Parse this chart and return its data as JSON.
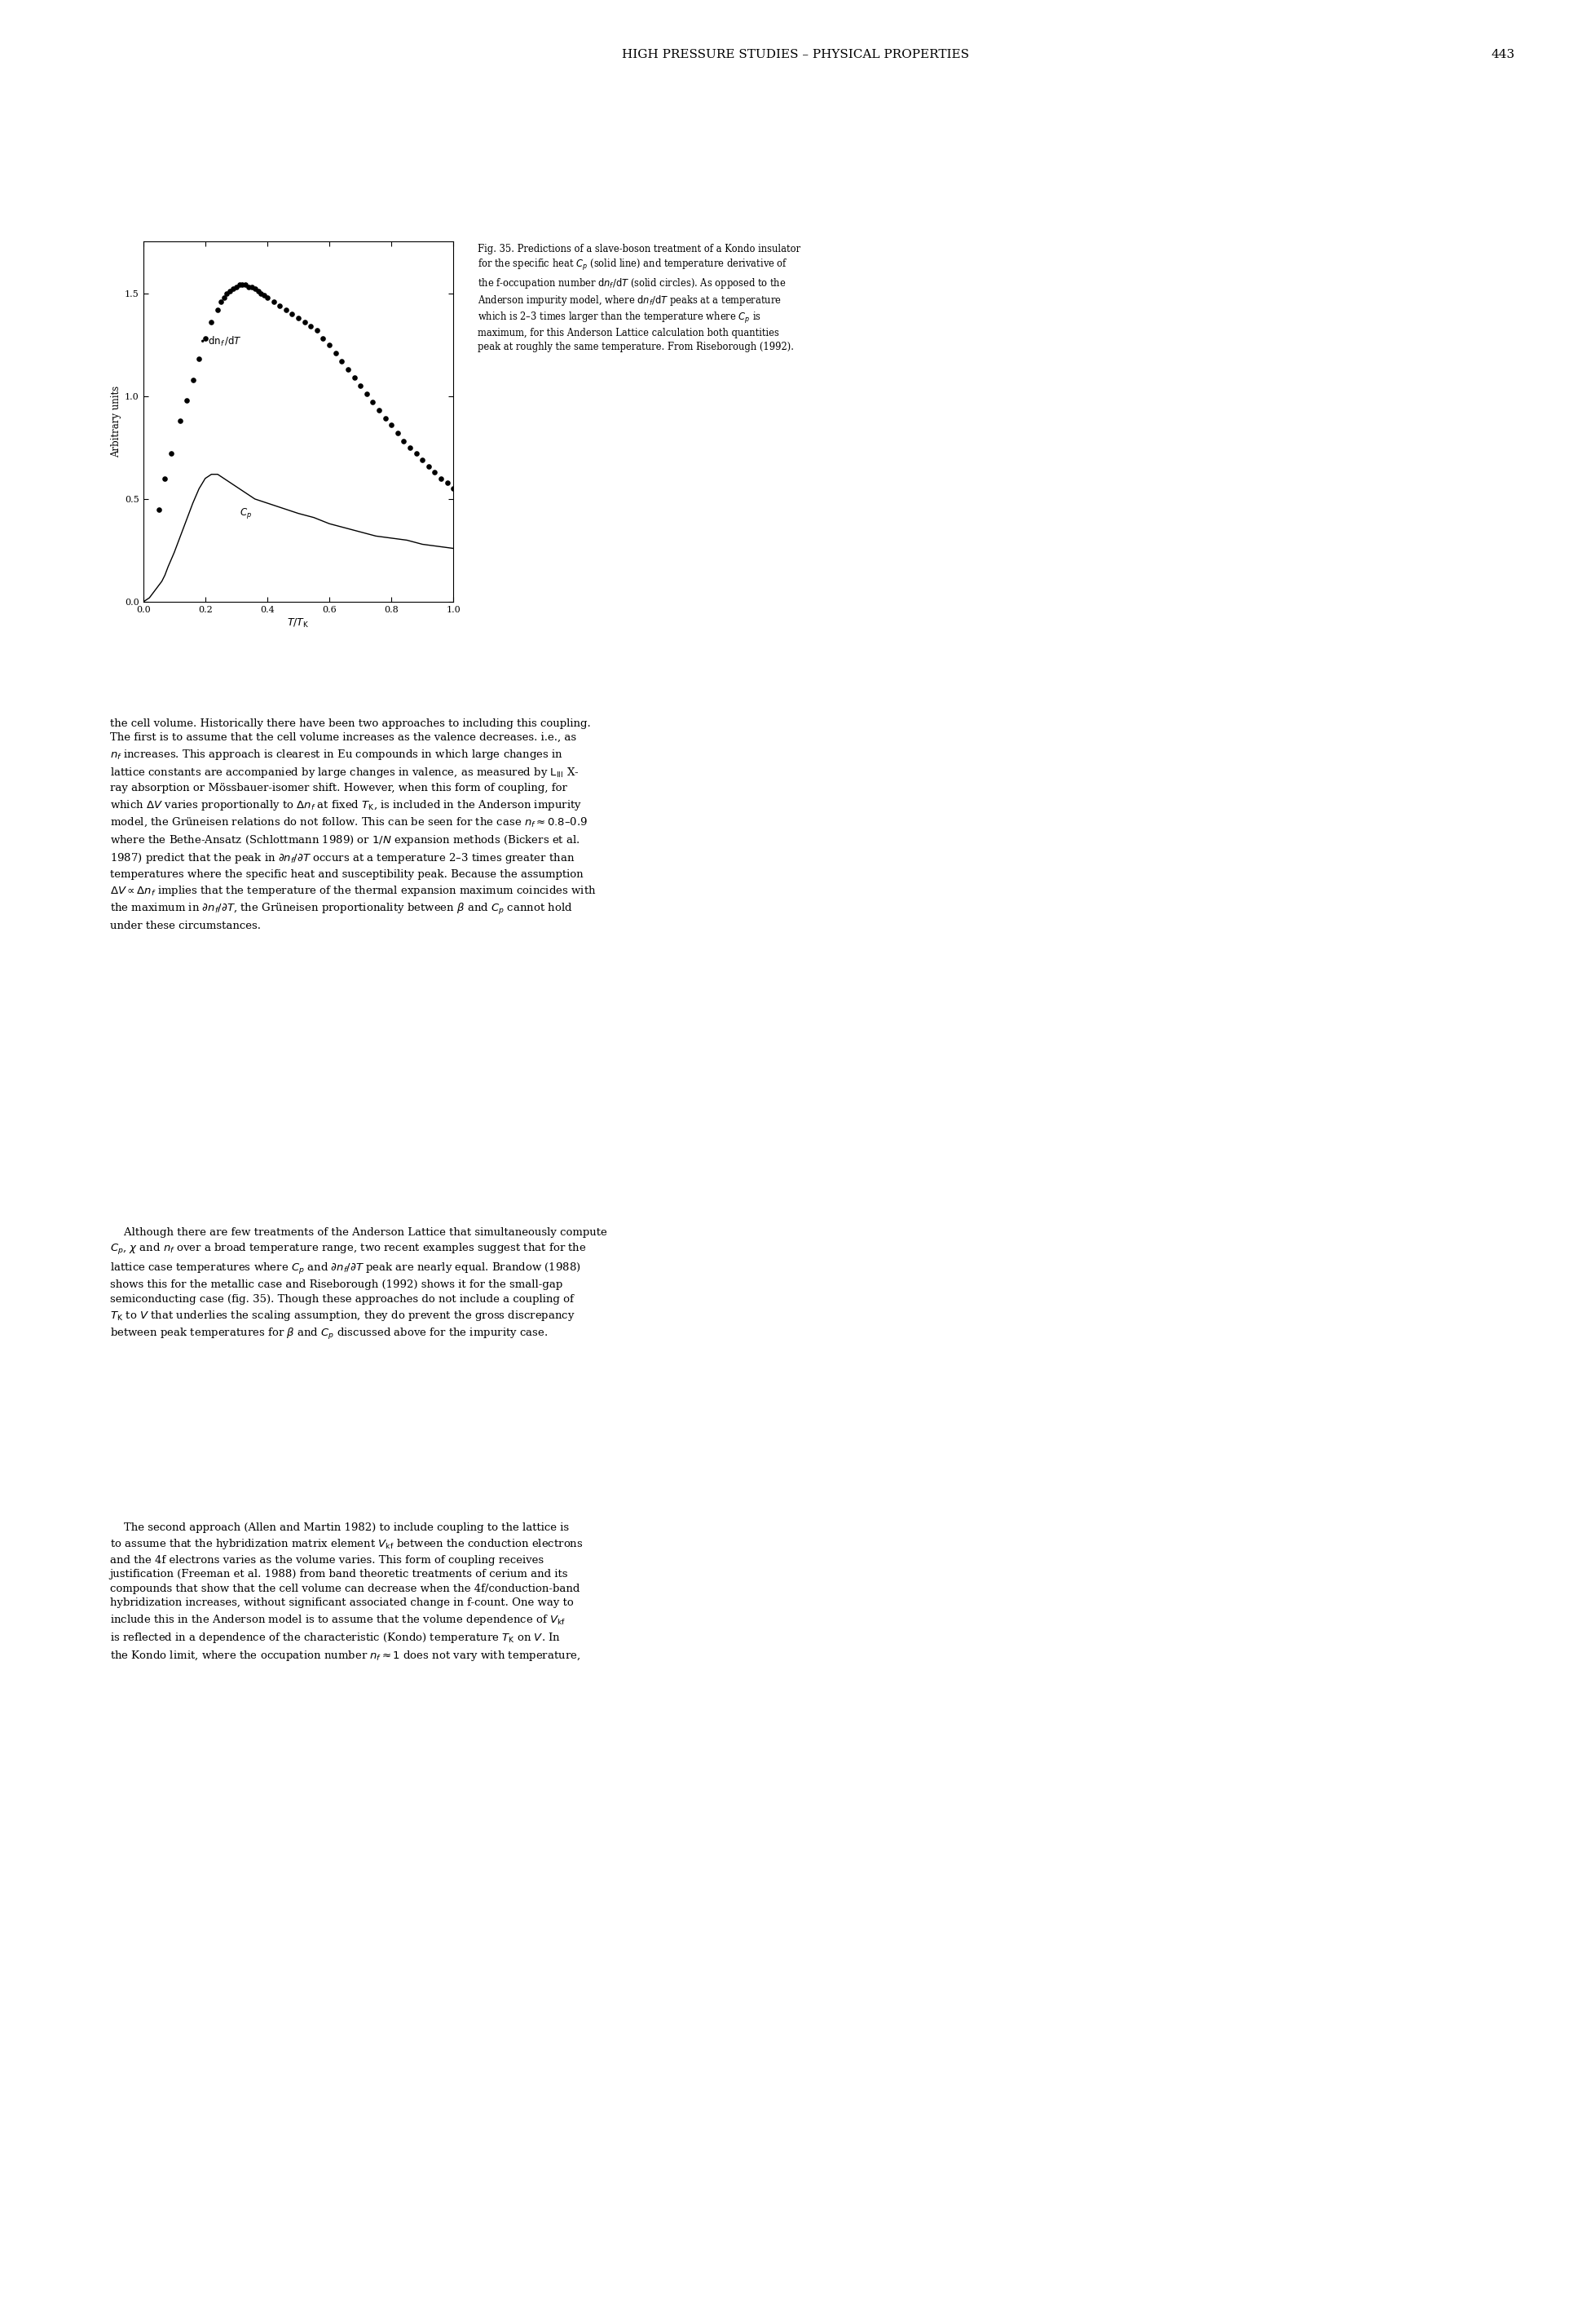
{
  "title_page": "HIGH PRESSURE STUDIES – PHYSICAL PROPERTIES",
  "page_number": "443",
  "xlabel": "T/T_K",
  "ylabel": "Arbitrary units",
  "xlim": [
    0.0,
    1.0
  ],
  "ylim": [
    0.0,
    1.75
  ],
  "yticks": [
    0.0,
    0.5,
    1.0,
    1.5
  ],
  "xticks": [
    0.0,
    0.2,
    0.4,
    0.6,
    0.8,
    1.0
  ],
  "xtick_labels": [
    "0.0",
    "0.2",
    "0.4",
    "0.6",
    "0.8",
    "1.0"
  ],
  "ytick_labels": [
    "0.0",
    "0.5",
    "1.0",
    "1.5"
  ],
  "solid_line_x": [
    0.0,
    0.01,
    0.02,
    0.03,
    0.04,
    0.05,
    0.06,
    0.07,
    0.08,
    0.1,
    0.12,
    0.14,
    0.16,
    0.18,
    0.2,
    0.22,
    0.24,
    0.26,
    0.28,
    0.3,
    0.32,
    0.34,
    0.36,
    0.38,
    0.4,
    0.42,
    0.44,
    0.46,
    0.48,
    0.5,
    0.55,
    0.6,
    0.65,
    0.7,
    0.75,
    0.8,
    0.85,
    0.9,
    0.95,
    1.0
  ],
  "solid_line_y": [
    0.0,
    0.01,
    0.02,
    0.04,
    0.06,
    0.08,
    0.1,
    0.13,
    0.17,
    0.24,
    0.32,
    0.4,
    0.48,
    0.55,
    0.6,
    0.62,
    0.62,
    0.6,
    0.58,
    0.56,
    0.54,
    0.52,
    0.5,
    0.49,
    0.48,
    0.47,
    0.46,
    0.45,
    0.44,
    0.43,
    0.41,
    0.38,
    0.36,
    0.34,
    0.32,
    0.31,
    0.3,
    0.28,
    0.27,
    0.26
  ],
  "dots_x": [
    0.05,
    0.07,
    0.09,
    0.12,
    0.14,
    0.16,
    0.18,
    0.2,
    0.22,
    0.24,
    0.25,
    0.26,
    0.27,
    0.28,
    0.29,
    0.3,
    0.31,
    0.32,
    0.33,
    0.34,
    0.35,
    0.36,
    0.37,
    0.38,
    0.39,
    0.4,
    0.42,
    0.44,
    0.46,
    0.48,
    0.5,
    0.52,
    0.54,
    0.56,
    0.58,
    0.6,
    0.62,
    0.64,
    0.66,
    0.68,
    0.7,
    0.72,
    0.74,
    0.76,
    0.78,
    0.8,
    0.82,
    0.84,
    0.86,
    0.88,
    0.9,
    0.92,
    0.94,
    0.96,
    0.98,
    1.0
  ],
  "dots_y": [
    0.45,
    0.6,
    0.72,
    0.88,
    0.98,
    1.08,
    1.18,
    1.28,
    1.36,
    1.42,
    1.46,
    1.48,
    1.5,
    1.51,
    1.52,
    1.53,
    1.54,
    1.54,
    1.54,
    1.53,
    1.53,
    1.52,
    1.51,
    1.5,
    1.49,
    1.48,
    1.46,
    1.44,
    1.42,
    1.4,
    1.38,
    1.36,
    1.34,
    1.32,
    1.28,
    1.25,
    1.21,
    1.17,
    1.13,
    1.09,
    1.05,
    1.01,
    0.97,
    0.93,
    0.89,
    0.86,
    0.82,
    0.78,
    0.75,
    0.72,
    0.69,
    0.66,
    0.63,
    0.6,
    0.58,
    0.55
  ],
  "line_color": "#000000",
  "dot_color": "#000000",
  "background_color": "#ffffff",
  "caption_text_lines": [
    "Fig. 35. Predictions of a slave-boson treatment of a Kondo insulator",
    "for the specific heat C_p (solid line) and temperature derivative of",
    "the f-occupation number dn_f/dT (solid circles). As opposed to the",
    "Anderson impurity model, where dn_f/dT peaks at a temperature",
    "which is 2–3 times larger than the temperature where C_p is",
    "maximum, for this Anderson Lattice calculation both quantities",
    "peak at roughly the same temperature. From Riseborough (1992)."
  ],
  "body_para1": "the cell volume. Historically there have been two approaches to including this coupling. The first is to assume that the cell volume increases as the valence decreases. i.e., as n_f increases. This approach is clearest in Eu compounds in which large changes in lattice constants are accompanied by large changes in valence, as measured by L_III X-ray absorption or Moessbauer-isomer shift. However, when this form of coupling, for which DeltaV varies proportionally to Deltan_f at fixed T_K, is included in the Anderson impurity model, the Grueneisen relations do not follow. This can be seen for the case n_f approx 0.8-0.9 where the Bethe-Ansatz (Schlottmann 1989) or 1/N expansion methods (Bickers et al. 1987) predict that the peak in dn_f/dT occurs at a temperature 2-3 times greater than temperatures where the specific heat and susceptibility peak. Because the assumption DeltaV propto Deltan_f implies that the temperature of the thermal expansion maximum coincides with the maximum in dn_f/dT, the Grueneisen proportionality between beta and C_p cannot hold under these circumstances.",
  "body_para2": "    Although there are few treatments of the Anderson Lattice that simultaneously compute C_p, chi and n_f over a broad temperature range, two recent examples suggest that for the lattice case temperatures where C_p and dn_f/dT peak are nearly equal. Brandow (1988) shows this for the metallic case and Riseborough (1992) shows it for the small-gap semiconducting case (fig. 35). Though these approaches do not include a coupling of T_K to V that underlies the scaling assumption, they do prevent the gross discrepancy between peak temperatures for beta and C_p discussed above for the impurity case.",
  "body_para3": "    The second approach (Allen and Martin 1982) to include coupling to the lattice is to assume that the hybridization matrix element V_kf between the conduction electrons and the 4f electrons varies as the volume varies. This form of coupling receives justification (Freeman et al. 1988) from band theoretic treatments of cerium and its compounds that show that the cell volume can decrease when the 4f/conduction-band hybridization increases, without significant associated change in f-count. One way to include this in the Anderson model is to assume that the volume dependence of V_kf is reflected in a dependence of the characteristic (Kondo) temperature T_K on V. In the Kondo limit, where the occupation number n_f approx 1 does not vary with temperature,"
}
